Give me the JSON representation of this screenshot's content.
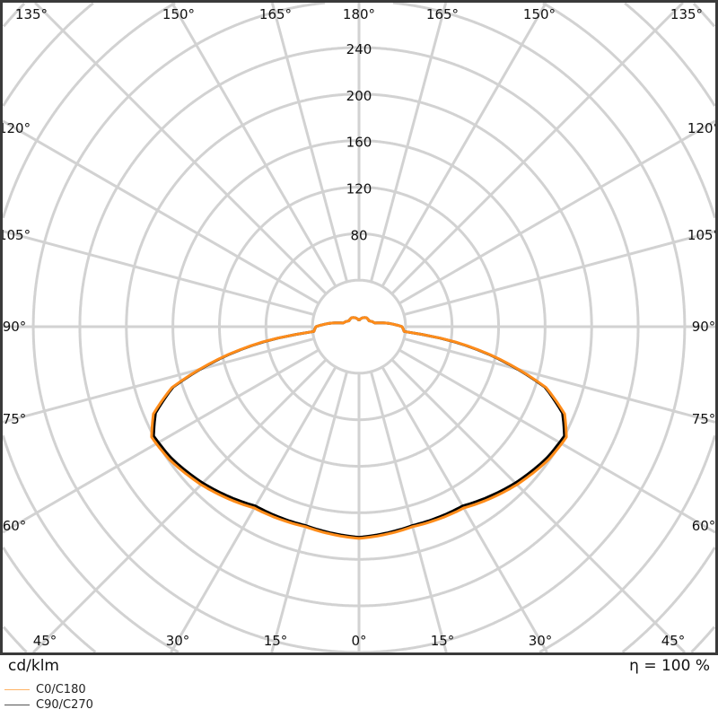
{
  "chart_data": {
    "type": "polar",
    "unit_label": "cd/klm",
    "efficiency_label": "η = 100 %",
    "radial_ticks": [
      80,
      120,
      160,
      200,
      240
    ],
    "radial_grid_step": 40,
    "angle_grid_step_deg": 15,
    "grid": true,
    "angle_labels": {
      "top": [
        "135°",
        "150°",
        "165°",
        "180°",
        "165°",
        "150°",
        "135°"
      ],
      "left": [
        "120°",
        "105°",
        "90°",
        "75°",
        "60°"
      ],
      "right": [
        "120°",
        "105°",
        "90°",
        "75°",
        "60°"
      ],
      "bottom": [
        "45°",
        "30°",
        "15°",
        "0°",
        "15°",
        "30°",
        "45°"
      ]
    },
    "legend_placement": "bottom-left",
    "gamma_deg": [
      0,
      15,
      30,
      45,
      55,
      62,
      67,
      72,
      77.6,
      81.5,
      84,
      90,
      95,
      103,
      120,
      140,
      160,
      175,
      180
    ],
    "series": [
      {
        "name": "C0/C180",
        "color": "#ff8c1a",
        "legend_color": "#ffb366",
        "values": [
          182,
          178,
          180,
          192,
          199,
          202,
          192,
          169,
          119,
          79,
          39,
          37,
          28,
          14,
          10,
          10,
          8,
          6,
          6
        ]
      },
      {
        "name": "C90/C270",
        "color": "#000000",
        "legend_color": "#555555",
        "values": [
          181,
          177,
          178,
          190,
          197,
          200,
          190,
          168,
          118,
          78,
          39,
          37,
          28,
          14,
          10,
          10,
          8,
          6,
          6
        ]
      }
    ]
  }
}
